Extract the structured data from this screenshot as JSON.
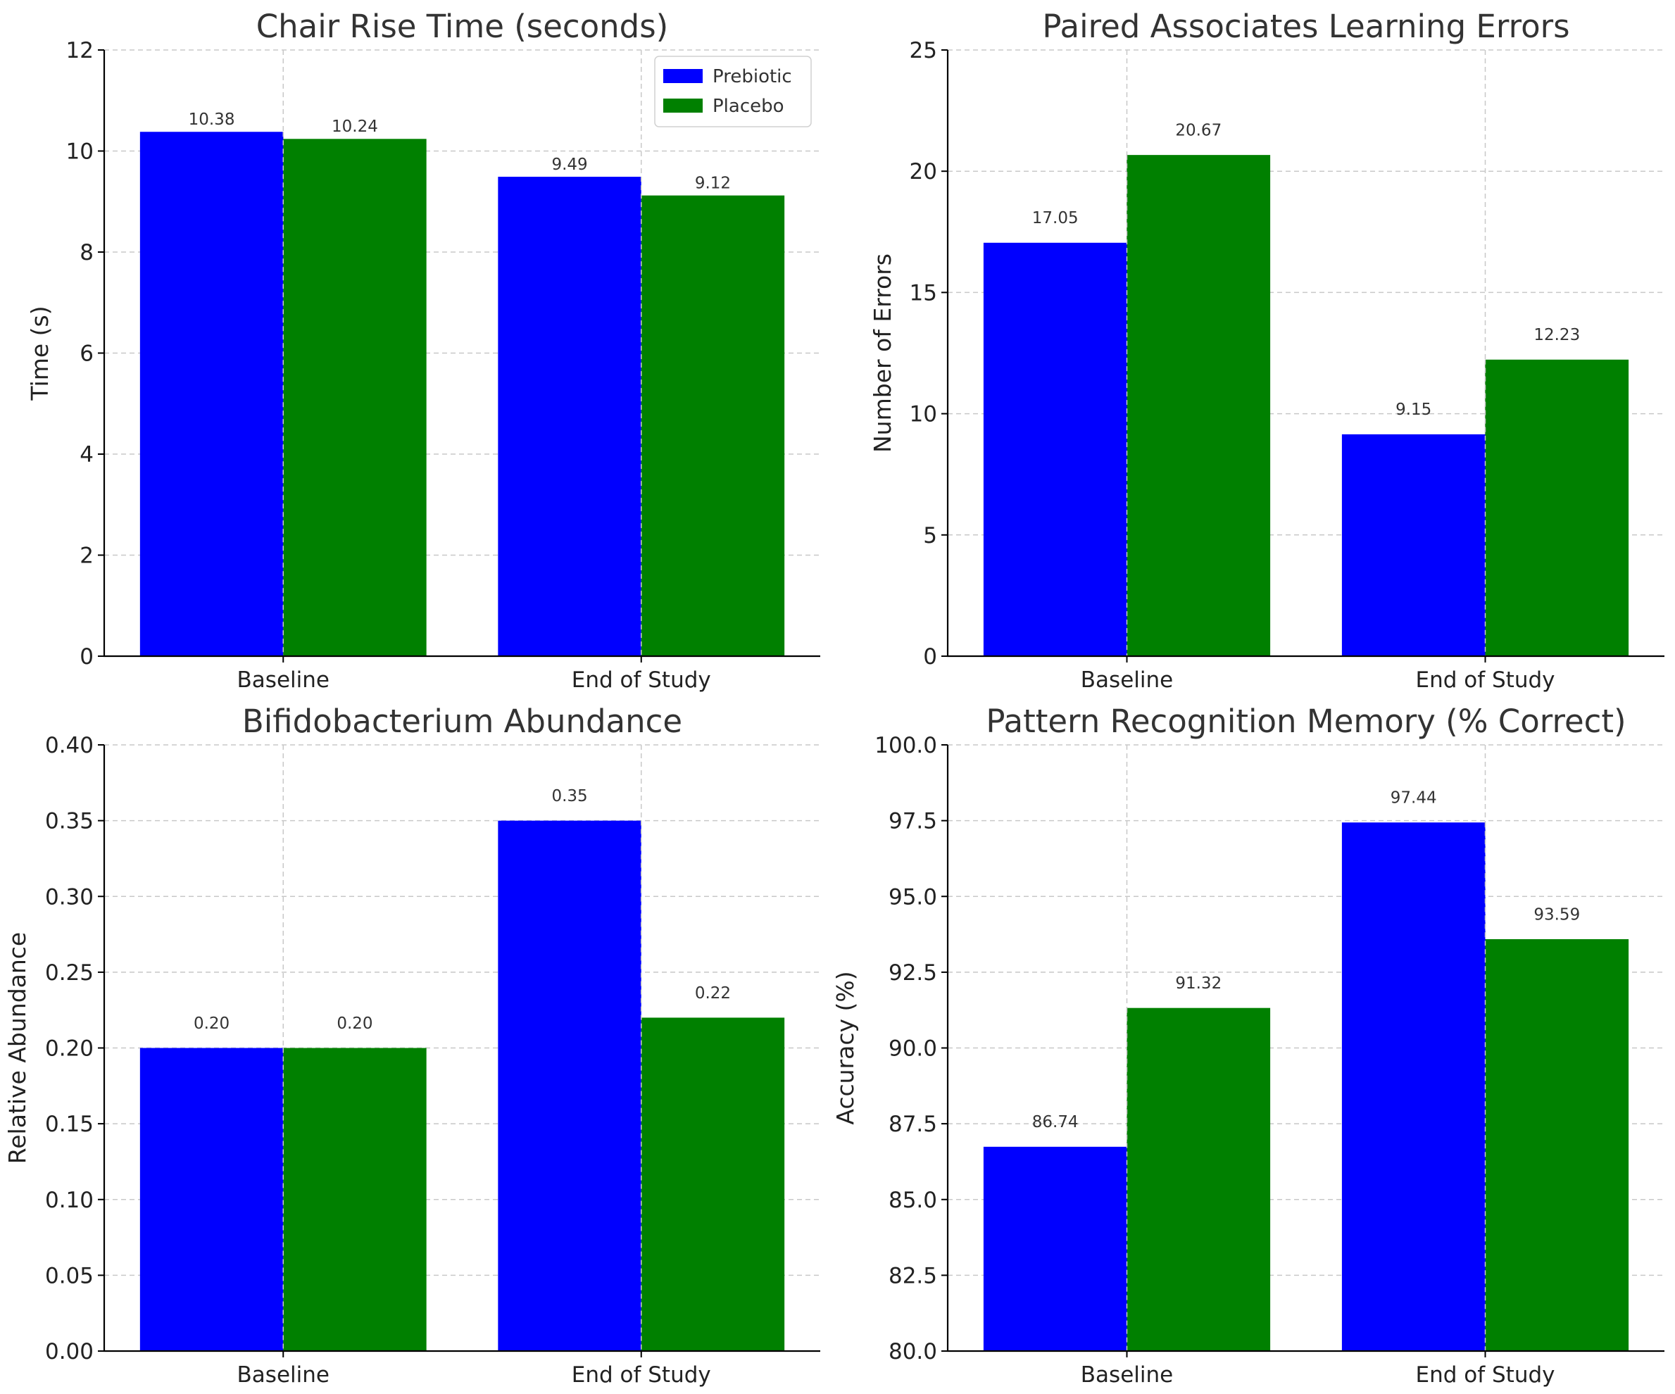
{
  "colors": {
    "prebiotic": "#0000ff",
    "placebo": "#008000"
  },
  "chart_data": [
    {
      "type": "bar",
      "title": "Chair Rise Time (seconds)",
      "xlabel": "",
      "ylabel": "Time (s)",
      "categories": [
        "Baseline",
        "End of Study"
      ],
      "series": [
        {
          "name": "Prebiotic",
          "values": [
            10.38,
            9.49
          ],
          "labels": [
            "10.38",
            "9.49"
          ]
        },
        {
          "name": "Placebo",
          "values": [
            10.24,
            9.12
          ],
          "labels": [
            "10.24",
            "9.12"
          ]
        }
      ],
      "ylim": [
        0,
        12
      ],
      "yticks": [
        "0",
        "2",
        "4",
        "6",
        "8",
        "10",
        "12"
      ],
      "grid": true,
      "legend": "top-right"
    },
    {
      "type": "bar",
      "title": "Paired Associates Learning Errors",
      "xlabel": "",
      "ylabel": "Number of Errors",
      "categories": [
        "Baseline",
        "End of Study"
      ],
      "series": [
        {
          "name": "Prebiotic",
          "values": [
            17.05,
            9.15
          ],
          "labels": [
            "17.05",
            "9.15"
          ]
        },
        {
          "name": "Placebo",
          "values": [
            20.67,
            12.23
          ],
          "labels": [
            "20.67",
            "12.23"
          ]
        }
      ],
      "ylim": [
        0,
        25
      ],
      "yticks": [
        "0",
        "5",
        "10",
        "15",
        "20",
        "25"
      ],
      "grid": true
    },
    {
      "type": "bar",
      "title": "Bifidobacterium Abundance",
      "xlabel": "",
      "ylabel": "Relative Abundance",
      "categories": [
        "Baseline",
        "End of Study"
      ],
      "series": [
        {
          "name": "Prebiotic",
          "values": [
            0.2,
            0.35
          ],
          "labels": [
            "0.20",
            "0.35"
          ]
        },
        {
          "name": "Placebo",
          "values": [
            0.2,
            0.22
          ],
          "labels": [
            "0.20",
            "0.22"
          ]
        }
      ],
      "ylim": [
        0,
        0.4
      ],
      "yticks": [
        "0.00",
        "0.05",
        "0.10",
        "0.15",
        "0.20",
        "0.25",
        "0.30",
        "0.35",
        "0.40"
      ],
      "grid": true
    },
    {
      "type": "bar",
      "title": "Pattern Recognition Memory (% Correct)",
      "xlabel": "",
      "ylabel": "Accuracy (%)",
      "categories": [
        "Baseline",
        "End of Study"
      ],
      "series": [
        {
          "name": "Prebiotic",
          "values": [
            86.74,
            97.44
          ],
          "labels": [
            "86.74",
            "97.44"
          ]
        },
        {
          "name": "Placebo",
          "values": [
            91.32,
            93.59
          ],
          "labels": [
            "91.32",
            "93.59"
          ]
        }
      ],
      "ylim": [
        80,
        100
      ],
      "yticks": [
        "80.0",
        "82.5",
        "85.0",
        "87.5",
        "90.0",
        "92.5",
        "95.0",
        "97.5",
        "100.0"
      ],
      "grid": true
    }
  ]
}
